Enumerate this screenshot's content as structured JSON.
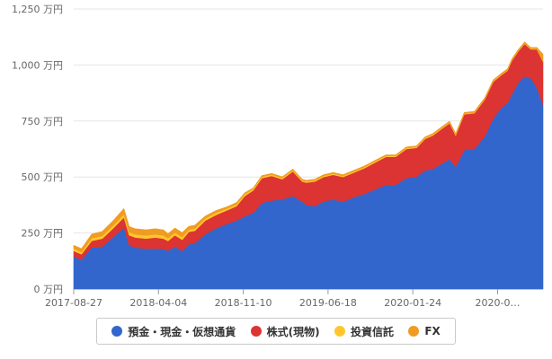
{
  "chart_data": {
    "type": "area",
    "stacked": true,
    "y_ticks": [
      "0 万円",
      "250 万円",
      "500 万円",
      "750 万円",
      "1,000 万円",
      "1,250 万円"
    ],
    "ylim": [
      0,
      1250
    ],
    "y_unit": "万円",
    "x_ticks": [
      "2017-08-27",
      "2018-04-04",
      "2018-11-10",
      "2019-06-18",
      "2020-01-24",
      "2020-0…"
    ],
    "xlim": [
      "2017-08-27",
      "2020-10-20"
    ],
    "grid": true,
    "legend_position": "bottom",
    "x": [
      "2017-08-27",
      "2017-09-15",
      "2017-10-10",
      "2017-11-05",
      "2017-12-01",
      "2017-12-28",
      "2018-01-10",
      "2018-01-25",
      "2018-02-20",
      "2018-03-15",
      "2018-04-04",
      "2018-04-15",
      "2018-05-02",
      "2018-05-20",
      "2018-06-05",
      "2018-06-20",
      "2018-07-15",
      "2018-08-10",
      "2018-09-05",
      "2018-09-30",
      "2018-10-20",
      "2018-11-10",
      "2018-12-01",
      "2018-12-25",
      "2019-01-20",
      "2019-02-15",
      "2019-03-10",
      "2019-03-20",
      "2019-04-10",
      "2019-05-01",
      "2019-05-25",
      "2019-06-18",
      "2019-07-15",
      "2019-08-10",
      "2019-09-05",
      "2019-10-01",
      "2019-10-25",
      "2019-11-20",
      "2019-12-15",
      "2020-01-05",
      "2020-01-24",
      "2020-02-15",
      "2020-03-05",
      "2020-03-20",
      "2020-04-10",
      "2020-05-05",
      "2020-05-30",
      "2020-06-20",
      "2020-07-10",
      "2020-07-25",
      "2020-08-05",
      "2020-08-20",
      "2020-09-05",
      "2020-09-20",
      "2020-10-05",
      "2020-10-20"
    ],
    "series": [
      {
        "name": "預金・現金・仮想通貨",
        "color": "#3366cc",
        "values": [
          145,
          130,
          185,
          190,
          230,
          275,
          195,
          185,
          180,
          180,
          180,
          170,
          190,
          170,
          200,
          205,
          245,
          270,
          290,
          305,
          325,
          340,
          385,
          395,
          400,
          415,
          390,
          375,
          370,
          390,
          400,
          390,
          410,
          425,
          445,
          465,
          465,
          495,
          500,
          530,
          535,
          560,
          580,
          545,
          620,
          625,
          680,
          760,
          810,
          830,
          870,
          920,
          950,
          940,
          900,
          820
        ]
      },
      {
        "name": "株式(現物)",
        "color": "#dc3432",
        "values": [
          25,
          25,
          30,
          35,
          40,
          45,
          45,
          45,
          45,
          50,
          45,
          45,
          50,
          50,
          55,
          55,
          60,
          60,
          60,
          65,
          90,
          100,
          110,
          110,
          90,
          110,
          90,
          100,
          110,
          110,
          110,
          110,
          110,
          115,
          120,
          125,
          125,
          130,
          130,
          140,
          150,
          155,
          160,
          140,
          160,
          160,
          165,
          165,
          145,
          145,
          150,
          140,
          145,
          130,
          170,
          195
        ]
      },
      {
        "name": "投資信託",
        "color": "#ffc72c",
        "values": [
          10,
          10,
          12,
          12,
          12,
          14,
          14,
          14,
          14,
          14,
          14,
          12,
          12,
          12,
          10,
          10,
          10,
          10,
          8,
          8,
          8,
          6,
          6,
          6,
          6,
          5,
          5,
          5,
          5,
          5,
          5,
          5,
          5,
          5,
          5,
          4,
          4,
          4,
          4,
          4,
          4,
          4,
          4,
          4,
          3,
          3,
          3,
          3,
          3,
          3,
          3,
          3,
          3,
          3,
          3,
          3
        ]
      },
      {
        "name": "FX",
        "color": "#f09c22",
        "values": [
          15,
          15,
          18,
          20,
          22,
          25,
          25,
          25,
          25,
          25,
          25,
          20,
          20,
          20,
          15,
          15,
          10,
          10,
          8,
          8,
          6,
          5,
          5,
          5,
          5,
          5,
          5,
          5,
          5,
          5,
          5,
          5,
          5,
          5,
          5,
          5,
          5,
          5,
          5,
          5,
          5,
          5,
          5,
          5,
          5,
          5,
          5,
          5,
          5,
          5,
          5,
          5,
          5,
          5,
          5,
          30
        ]
      }
    ]
  }
}
